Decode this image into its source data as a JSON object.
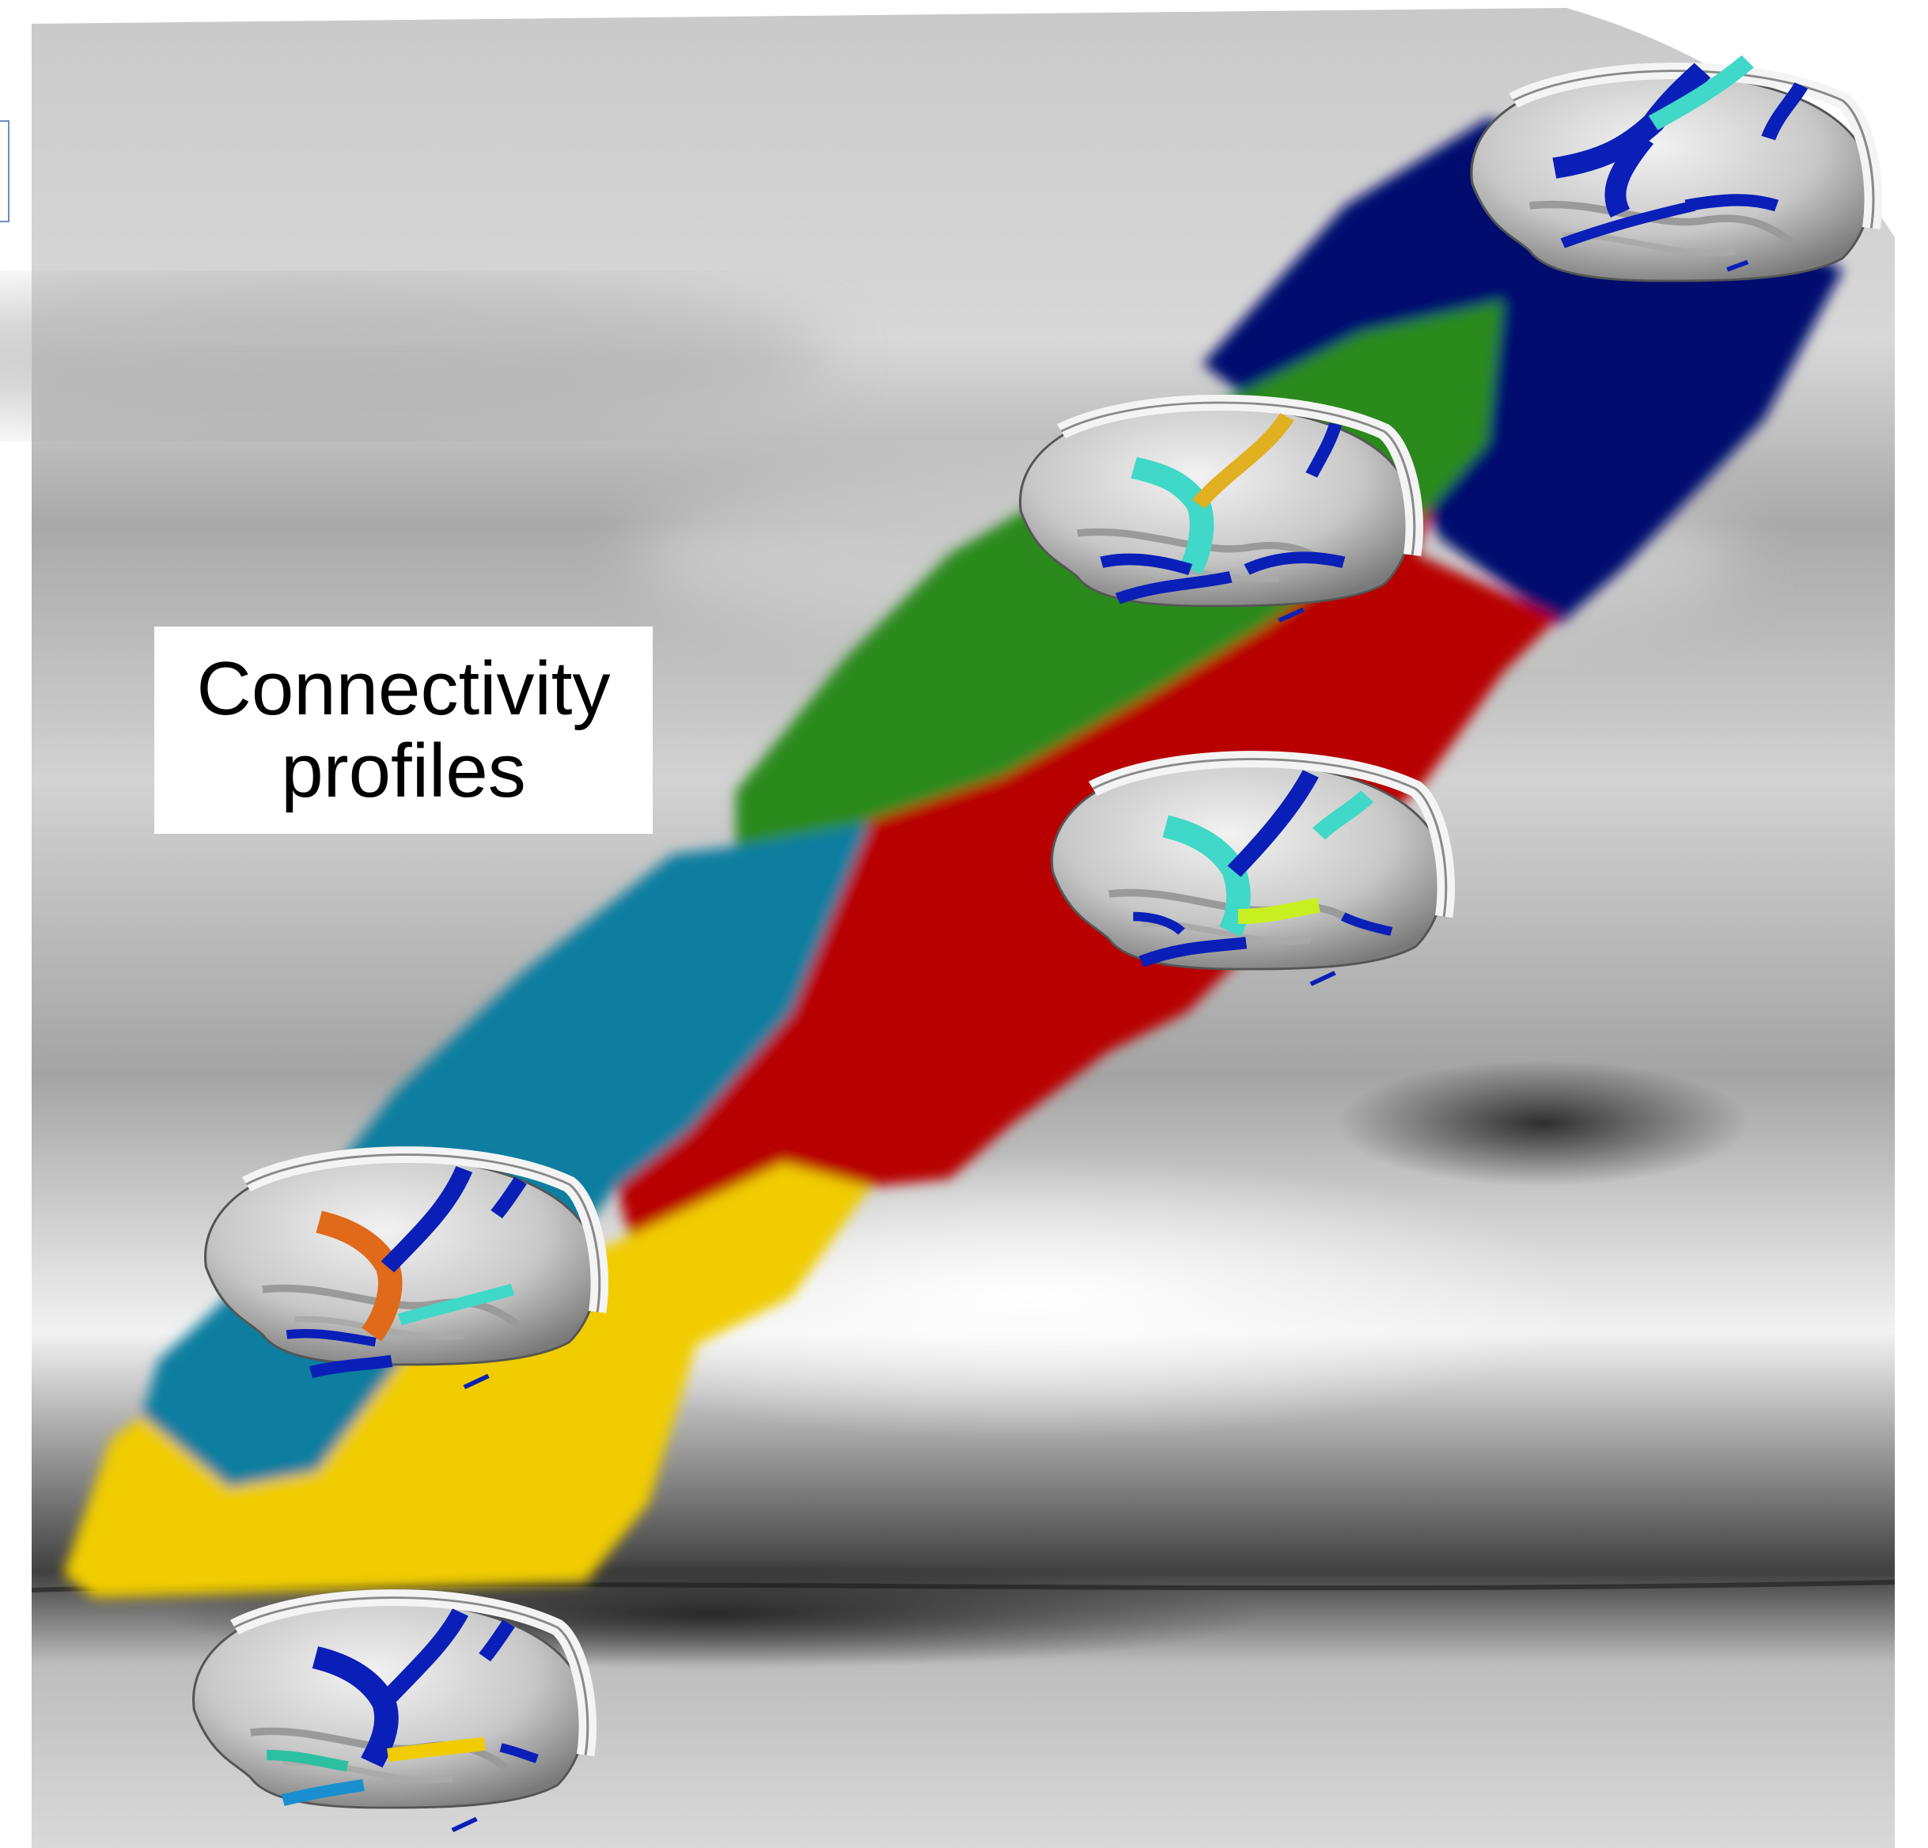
{
  "label": {
    "line1": "Connectivity",
    "line2": "profiles"
  },
  "colors": {
    "navy": "#000b6e",
    "green": "#2b8a1f",
    "red": "#b80000",
    "teal": "#0a7ea0",
    "yellow": "#f0cc00",
    "brain_blue": "#0a1fb8",
    "brain_cyan": "#40d8c8",
    "brain_orange": "#e06a1a",
    "brain_gold": "#e0b020",
    "brain_lime": "#c8f020"
  },
  "brains": [
    {
      "name": "brain-top-right",
      "accent": "#40d8c8"
    },
    {
      "name": "brain-upper-middle",
      "accent": "#e0b020"
    },
    {
      "name": "brain-middle",
      "accent": "#40d8c8"
    },
    {
      "name": "brain-lower-left",
      "accent": "#e06a1a"
    },
    {
      "name": "brain-bottom-left",
      "accent": "#f0cc00"
    }
  ]
}
